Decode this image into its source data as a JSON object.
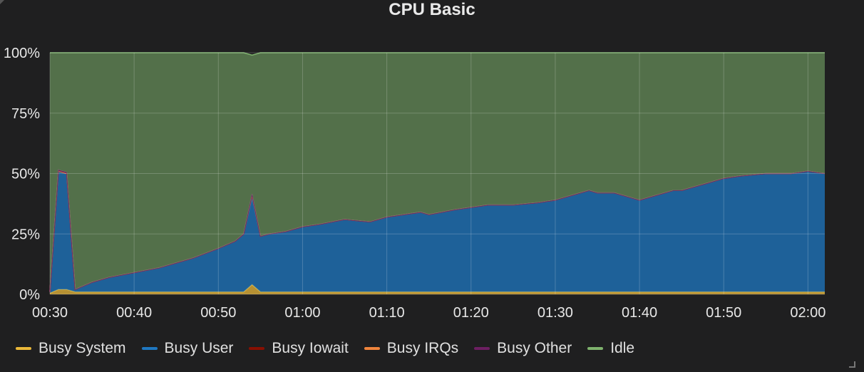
{
  "panel": {
    "title": "CPU Basic"
  },
  "colors": {
    "busy_system": "#eab839",
    "busy_user": "#1f78c1",
    "busy_iowait": "#890f02",
    "busy_irqs": "#ef843c",
    "busy_other": "#6d1f62",
    "idle": "#7eb26d"
  },
  "chart_data": {
    "type": "area",
    "title": "CPU Basic",
    "stacked": true,
    "xlabel": "",
    "ylabel": "",
    "ylim": [
      0,
      100
    ],
    "y_ticks": [
      "0%",
      "25%",
      "50%",
      "75%",
      "100%"
    ],
    "x_range": [
      "00:30",
      "02:02"
    ],
    "x_ticks": [
      "00:30",
      "00:40",
      "00:50",
      "01:00",
      "01:10",
      "01:20",
      "01:30",
      "01:40",
      "01:50",
      "02:00"
    ],
    "grid": true,
    "legend_position": "bottom",
    "x": [
      "00:30",
      "00:31",
      "00:32",
      "00:33",
      "00:35",
      "00:37",
      "00:40",
      "00:43",
      "00:45",
      "00:47",
      "00:50",
      "00:52",
      "00:53",
      "00:54",
      "00:55",
      "00:56",
      "00:58",
      "01:00",
      "01:02",
      "01:05",
      "01:08",
      "01:10",
      "01:12",
      "01:14",
      "01:15",
      "01:18",
      "01:20",
      "01:22",
      "01:25",
      "01:28",
      "01:30",
      "01:32",
      "01:34",
      "01:35",
      "01:37",
      "01:40",
      "01:42",
      "01:44",
      "01:45",
      "01:48",
      "01:50",
      "01:52",
      "01:55",
      "01:58",
      "02:00",
      "02:02"
    ],
    "series": [
      {
        "name": "Busy System",
        "values": [
          0.5,
          2,
          2,
          1,
          1,
          1,
          1,
          1,
          1,
          1,
          1,
          1,
          1,
          4,
          1,
          1,
          1,
          1,
          1,
          1,
          1,
          1,
          1,
          1,
          1,
          1,
          1,
          1,
          1,
          1,
          1,
          1,
          1,
          1,
          1,
          1,
          1,
          1,
          1,
          1,
          1,
          1,
          1,
          1,
          1,
          1
        ]
      },
      {
        "name": "Busy User",
        "values": [
          0.5,
          49,
          48,
          1,
          4,
          6,
          8,
          10,
          12,
          14,
          18,
          21,
          24,
          36,
          23,
          24,
          25,
          27,
          28,
          30,
          29,
          31,
          32,
          33,
          32,
          34,
          35,
          36,
          36,
          37,
          38,
          40,
          42,
          41,
          41,
          38,
          40,
          42,
          42,
          45,
          47,
          48,
          49,
          49,
          50,
          49
        ]
      },
      {
        "name": "Busy Iowait",
        "values": [
          0,
          0,
          0,
          0,
          0,
          0,
          0,
          0,
          0,
          0,
          0,
          0,
          0,
          1,
          0,
          0,
          0,
          0,
          0,
          0,
          0,
          0,
          0,
          0,
          0,
          0,
          0,
          0,
          0,
          0,
          0,
          0,
          0,
          0,
          0,
          0,
          0,
          0,
          0,
          0,
          0,
          0,
          0,
          0,
          0,
          0
        ]
      },
      {
        "name": "Busy IRQs",
        "values": [
          0,
          0,
          0,
          0,
          0,
          0,
          0,
          0,
          0,
          0,
          0,
          0,
          0,
          0,
          0,
          0,
          0,
          0,
          0,
          0,
          0,
          0,
          0,
          0,
          0,
          0,
          0,
          0,
          0,
          0,
          0,
          0,
          0,
          0,
          0,
          0,
          0,
          0,
          0,
          0,
          0,
          0,
          0,
          0,
          0,
          0
        ]
      },
      {
        "name": "Busy Other",
        "values": [
          0,
          0.5,
          0.5,
          0,
          0,
          0,
          0,
          0,
          0,
          0,
          0,
          0,
          0,
          0.5,
          0,
          0,
          0,
          0,
          0,
          0,
          0,
          0,
          0,
          0,
          0,
          0,
          0,
          0,
          0,
          0,
          0,
          0,
          0,
          0,
          0,
          0,
          0,
          0,
          0,
          0,
          0,
          0,
          0,
          0,
          0,
          0
        ]
      },
      {
        "name": "Idle",
        "values": [
          99,
          48.5,
          49.5,
          98,
          95,
          93,
          91,
          89,
          87,
          85,
          81,
          78,
          75,
          57.5,
          76,
          75,
          74,
          72,
          71,
          69,
          70,
          68,
          67,
          66,
          67,
          65,
          64,
          63,
          63,
          62,
          61,
          59,
          57,
          58,
          58,
          61,
          59,
          57,
          57,
          54,
          52,
          51,
          50,
          50,
          49,
          50
        ]
      }
    ]
  },
  "legend": [
    {
      "name": "Busy System",
      "key": "busy_system"
    },
    {
      "name": "Busy User",
      "key": "busy_user"
    },
    {
      "name": "Busy Iowait",
      "key": "busy_iowait"
    },
    {
      "name": "Busy IRQs",
      "key": "busy_irqs"
    },
    {
      "name": "Busy Other",
      "key": "busy_other"
    },
    {
      "name": "Idle",
      "key": "idle"
    }
  ]
}
